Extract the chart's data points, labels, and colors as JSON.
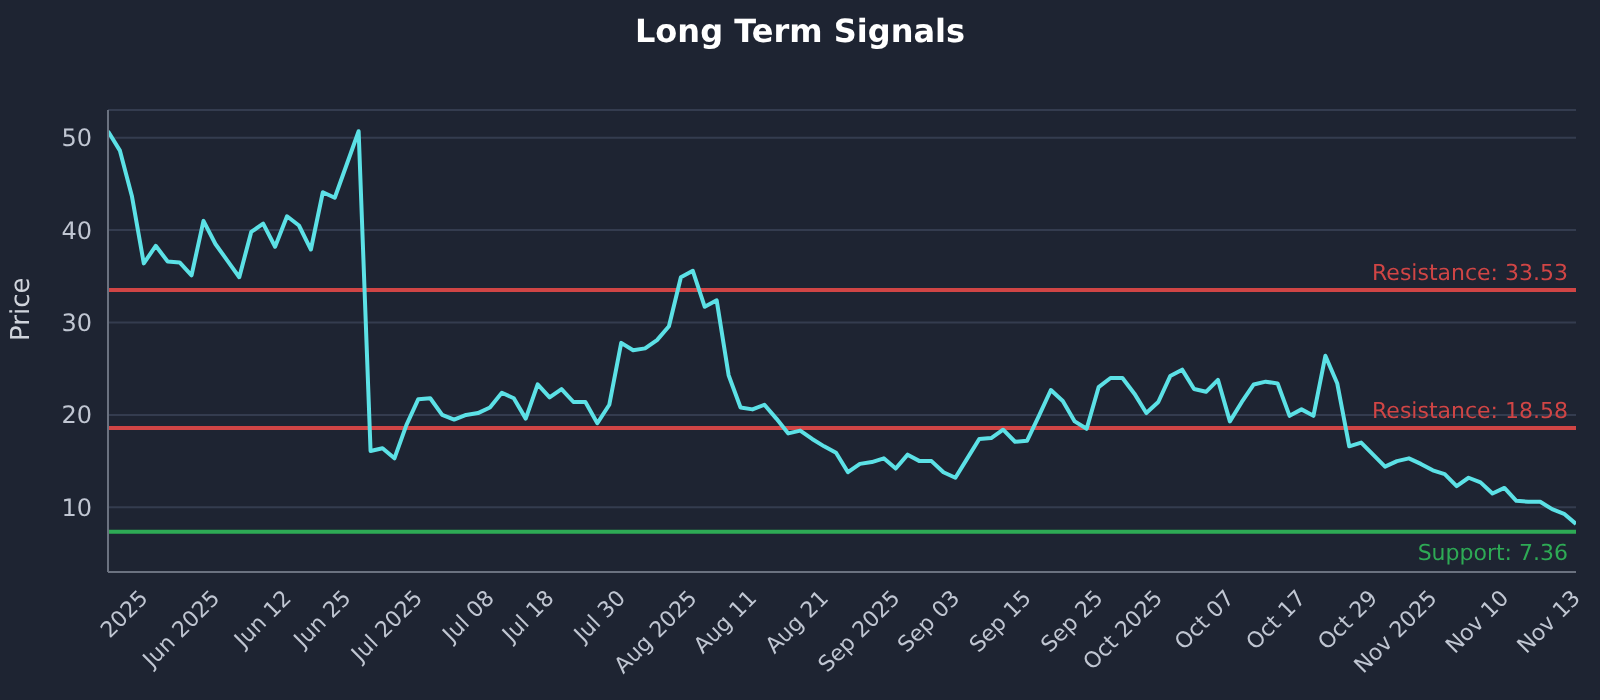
{
  "chart_data": {
    "type": "line",
    "title": "Long Term Signals",
    "ylabel": "Price",
    "categories": [
      null,
      null,
      null,
      "2025",
      null,
      null,
      null,
      null,
      null,
      "Jun 2025",
      null,
      null,
      null,
      null,
      null,
      "Jun 12",
      null,
      null,
      null,
      null,
      "Jun 25",
      null,
      null,
      null,
      null,
      null,
      "Jul 2025",
      null,
      null,
      null,
      null,
      null,
      "Jul 08",
      null,
      null,
      null,
      null,
      "Jul 18",
      null,
      null,
      null,
      null,
      null,
      "Jul 30",
      null,
      null,
      null,
      null,
      null,
      "Aug 2025",
      null,
      null,
      null,
      null,
      "Aug 11",
      null,
      null,
      null,
      null,
      null,
      "Aug 21",
      null,
      null,
      null,
      null,
      null,
      "Sep 2025",
      null,
      null,
      null,
      null,
      "Sep 03",
      null,
      null,
      null,
      null,
      null,
      "Sep 15",
      null,
      null,
      null,
      null,
      null,
      "Sep 25",
      null,
      null,
      null,
      null,
      "Oct 2025",
      null,
      null,
      null,
      null,
      null,
      "Oct 07",
      null,
      null,
      null,
      null,
      null,
      "Oct 17",
      null,
      null,
      null,
      null,
      null,
      "Oct 29",
      null,
      null,
      null,
      null,
      "Nov 2025",
      null,
      null,
      null,
      null,
      null,
      "Nov 10",
      null,
      null,
      null,
      null,
      null,
      "Nov 13"
    ],
    "series": [
      {
        "color": "#5ce1e6",
        "values": [
          50.7,
          48.6,
          43.7,
          36.4,
          38.3,
          36.6,
          36.5,
          35.1,
          41.0,
          38.5,
          36.7,
          34.9,
          39.8,
          40.7,
          38.2,
          41.5,
          40.5,
          37.9,
          44.1,
          43.5,
          47.1,
          50.7,
          16.1,
          16.4,
          15.3,
          18.9,
          21.7,
          21.8,
          20.0,
          19.5,
          20.0,
          20.2,
          20.8,
          22.4,
          21.8,
          19.6,
          23.3,
          21.9,
          22.8,
          21.4,
          21.4,
          19.1,
          21.1,
          27.8,
          27.0,
          27.2,
          28.1,
          29.6,
          34.9,
          35.6,
          31.7,
          32.4,
          24.3,
          20.8,
          20.6,
          21.1,
          19.6,
          18.0,
          18.3,
          17.4,
          16.6,
          15.9,
          13.8,
          14.7,
          14.9,
          15.3,
          14.2,
          15.7,
          15.0,
          15.0,
          13.8,
          13.2,
          15.3,
          17.4,
          17.5,
          18.4,
          17.1,
          17.2,
          19.9,
          22.7,
          21.5,
          19.3,
          18.5,
          23.0,
          24.0,
          24.0,
          22.3,
          20.2,
          21.4,
          24.2,
          24.9,
          22.8,
          22.5,
          23.8,
          19.3,
          21.4,
          23.3,
          23.6,
          23.4,
          19.9,
          20.6,
          19.9,
          26.4,
          23.4,
          16.6,
          17.0,
          15.7,
          14.4,
          15.0,
          15.3,
          14.7,
          14.0,
          13.6,
          12.3,
          13.2,
          12.7,
          11.5,
          12.1,
          10.7,
          10.6,
          10.6,
          9.8,
          9.3,
          8.2
        ]
      }
    ],
    "ylim": [
      3,
      53
    ],
    "yticks": [
      10,
      20,
      30,
      40,
      50
    ],
    "grid": "y",
    "legend": false,
    "marker": "none",
    "line_style": "solid",
    "ref_lines": [
      {
        "axis": "y",
        "value": 33.53,
        "label": "Resistance: 33.53",
        "color": "#d04545"
      },
      {
        "axis": "y",
        "value": 18.58,
        "label": "Resistance: 18.58",
        "color": "#d04545"
      },
      {
        "axis": "y",
        "value": 7.36,
        "label": "Support: 7.36",
        "color": "#2eaa55"
      }
    ]
  }
}
